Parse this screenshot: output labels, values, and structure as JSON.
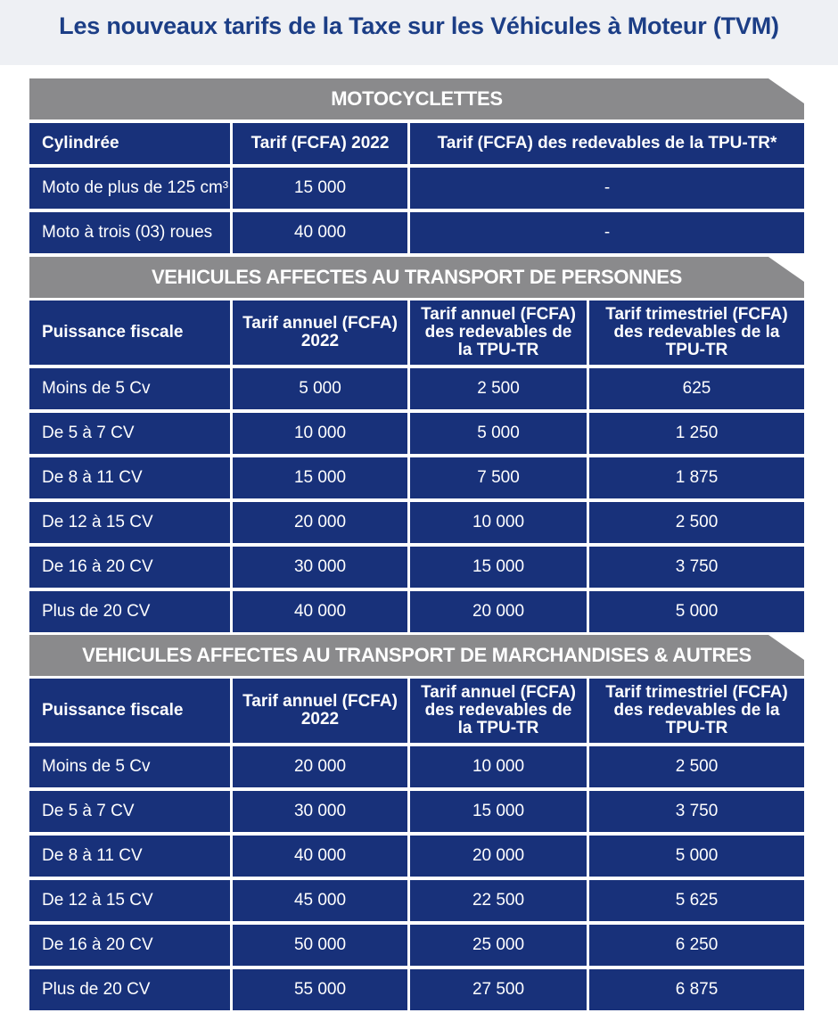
{
  "title": "Les nouveaux tarifs de la Taxe sur les Véhicules à Moteur (TVM)",
  "moto": {
    "section_title": "MOTOCYCLETTES",
    "headers": [
      "Cylindrée",
      "Tarif (FCFA) 2022",
      "Tarif (FCFA) des redevables de la TPU-TR*"
    ],
    "rows": [
      [
        "Moto de plus de 125 cm³",
        "15 000",
        "-"
      ],
      [
        "Moto à trois (03) roues",
        "40 000",
        "-"
      ]
    ]
  },
  "personnes": {
    "section_title": "VEHICULES AFFECTES AU TRANSPORT DE PERSONNES",
    "headers": [
      "Puissance fiscale",
      "Tarif annuel (FCFA) 2022",
      "Tarif annuel (FCFA) des redevables de la TPU-TR",
      "Tarif trimestriel (FCFA) des redevables de la TPU-TR"
    ],
    "rows": [
      [
        "Moins de 5 Cv",
        "5 000",
        "2 500",
        "625"
      ],
      [
        "De 5 à 7 CV",
        "10 000",
        "5 000",
        "1 250"
      ],
      [
        "De 8 à 11 CV",
        "15 000",
        "7 500",
        "1 875"
      ],
      [
        "De 12 à 15 CV",
        "20 000",
        "10 000",
        "2 500"
      ],
      [
        "De 16 à 20 CV",
        "30 000",
        "15 000",
        "3 750"
      ],
      [
        "Plus de 20 CV",
        "40 000",
        "20 000",
        "5 000"
      ]
    ]
  },
  "marchandises": {
    "section_title": "VEHICULES AFFECTES AU TRANSPORT DE MARCHANDISES & AUTRES",
    "headers": [
      "Puissance fiscale",
      "Tarif annuel (FCFA) 2022",
      "Tarif annuel (FCFA) des redevables de la TPU-TR",
      "Tarif trimestriel (FCFA) des redevables de la TPU-TR"
    ],
    "rows": [
      [
        "Moins de 5 Cv",
        "20 000",
        "10 000",
        "2 500"
      ],
      [
        "De 5 à 7 CV",
        "30 000",
        "15 000",
        "3 750"
      ],
      [
        "De 8 à 11 CV",
        "40 000",
        "20 000",
        "5 000"
      ],
      [
        "De 12 à 15 CV",
        "45 000",
        "22 500",
        "5 625"
      ],
      [
        "De 16 à 20 CV",
        "50 000",
        "25 000",
        "6 250"
      ],
      [
        "Plus de 20 CV",
        "55 000",
        "27 500",
        "6 875"
      ]
    ]
  },
  "colors": {
    "cell_blue": "#18317a",
    "section_gray": "#8a8a8c",
    "title_blue": "#1c3e86"
  }
}
